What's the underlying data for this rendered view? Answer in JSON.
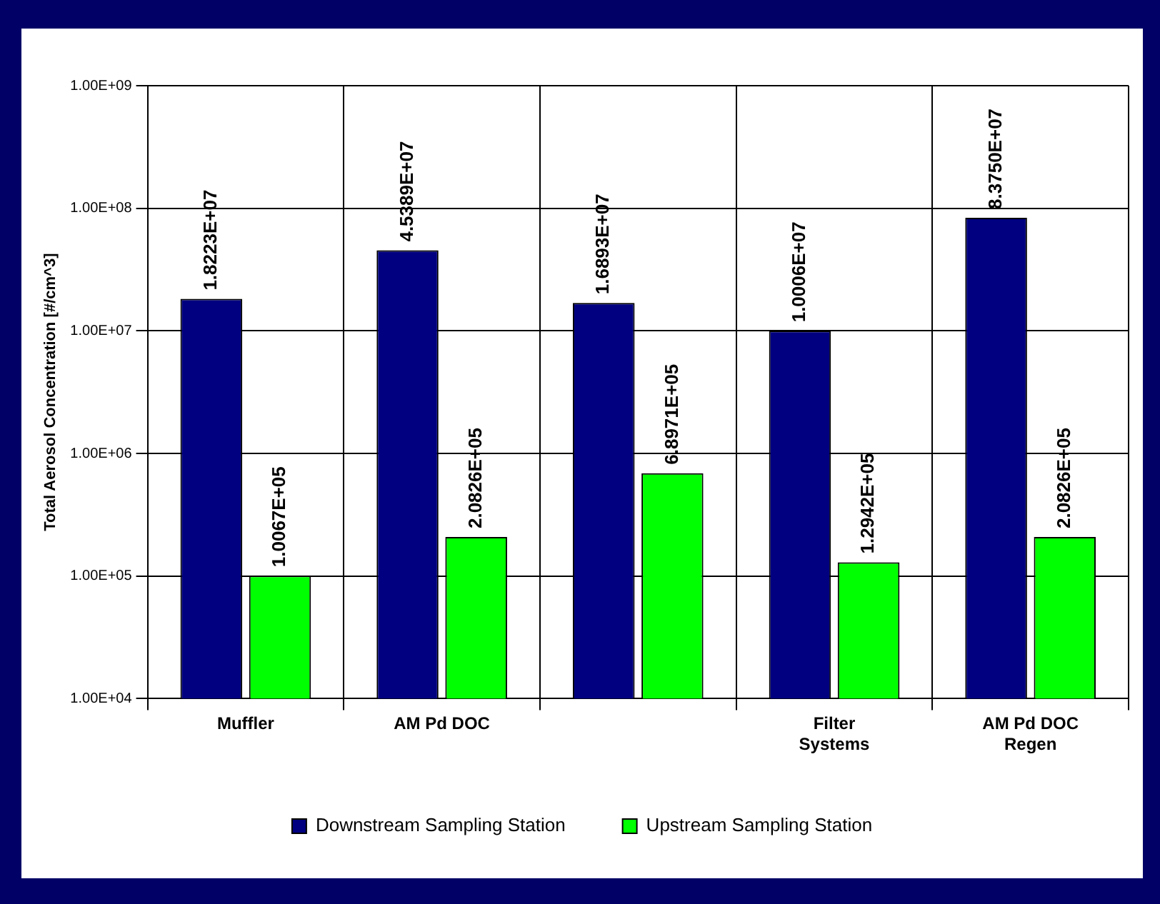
{
  "chart_data": {
    "type": "bar",
    "ylabel": "Total Aerosol Concentration [#/cm^3]",
    "categories": [
      "Muffler",
      "AM Pd DOC",
      null,
      "Filter Systems",
      "AM Pd DOC Regen"
    ],
    "series": [
      {
        "name": "Downstream Sampling Station",
        "color": "#000080",
        "values": [
          18223000,
          45389000,
          16893000,
          10006000,
          83750000
        ],
        "value_labels": [
          "1.8223E+07",
          "4.5389E+07",
          "1.6893E+07",
          "1.0006E+07",
          "8.3750E+07"
        ]
      },
      {
        "name": "Upstream Sampling Station",
        "color": "#00ff00",
        "values": [
          100670,
          208260,
          689710,
          129420,
          208260
        ],
        "value_labels": [
          "1.0067E+05",
          "2.0826E+05",
          "6.8971E+05",
          "1.2942E+05",
          "2.0826E+05"
        ]
      }
    ],
    "log": "y",
    "ylim": [
      10000,
      1000000000
    ],
    "yticks": [
      {
        "value": 10000,
        "label": "1.00E+04"
      },
      {
        "value": 100000,
        "label": "1.00E+05"
      },
      {
        "value": 1000000,
        "label": "1.00E+06"
      },
      {
        "value": 10000000,
        "label": "1.00E+07"
      },
      {
        "value": 100000000,
        "label": "1.00E+08"
      },
      {
        "value": 1000000000,
        "label": "1.00E+09"
      }
    ],
    "grid": true,
    "legend": "bottom"
  }
}
